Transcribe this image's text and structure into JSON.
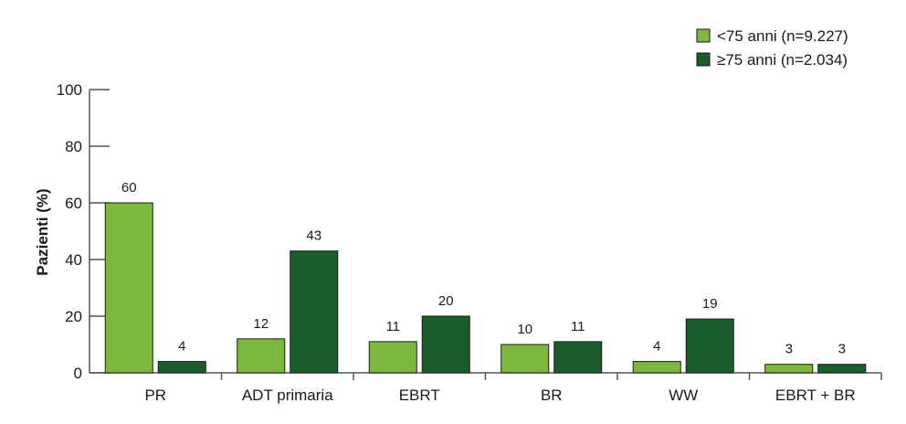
{
  "chart_data": {
    "type": "bar",
    "title": "",
    "xlabel": "",
    "ylabel": "Pazienti (%)",
    "ylim": [
      0,
      100
    ],
    "yticks": [
      0,
      20,
      40,
      60,
      80,
      100
    ],
    "categories": [
      "PR",
      "ADT primaria",
      "EBRT",
      "BR",
      "WW",
      "EBRT + BR"
    ],
    "series": [
      {
        "name": "<75 anni (n=9.227)",
        "color": "#7cb83e",
        "values": [
          60,
          12,
          11,
          10,
          4,
          3
        ]
      },
      {
        "name": "≥75 anni (n=2.034)",
        "color": "#1a5c2a",
        "values": [
          4,
          43,
          20,
          11,
          19,
          3
        ]
      }
    ],
    "legend_position": "top-right",
    "grid": false
  }
}
